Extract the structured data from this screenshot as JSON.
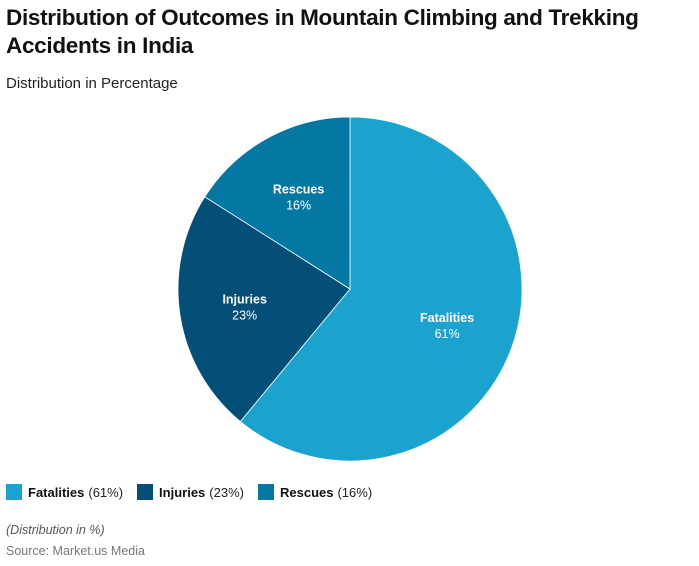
{
  "header": {
    "title": "Distribution of Outcomes in Mountain Climbing and Trekking Accidents in India",
    "subtitle": "Distribution in Percentage"
  },
  "chart_data": {
    "type": "pie",
    "title": "Distribution of Outcomes in Mountain Climbing and Trekking Accidents in India",
    "subtitle": "Distribution in Percentage",
    "categories": [
      "Fatalities",
      "Injuries",
      "Rescues"
    ],
    "values": [
      61,
      23,
      16
    ],
    "unit": "%",
    "colors": [
      "#19A3CE",
      "#034F78",
      "#0478A2"
    ],
    "legend_position": "bottom",
    "slices": [
      {
        "label": "Fatalities",
        "value": 61,
        "value_label": "61%",
        "legend": "(61%)",
        "color": "#19A3CE"
      },
      {
        "label": "Injuries",
        "value": 23,
        "value_label": "23%",
        "legend": "(23%)",
        "color": "#034F78"
      },
      {
        "label": "Rescues",
        "value": 16,
        "value_label": "16%",
        "legend": "(16%)",
        "color": "#0478A2"
      }
    ]
  },
  "footer": {
    "note": "(Distribution in %)",
    "source": "Source: Market.us Media"
  }
}
